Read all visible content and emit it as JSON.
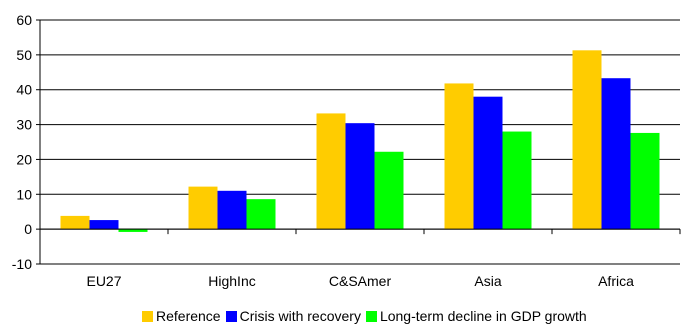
{
  "chart_data": {
    "type": "bar",
    "categories": [
      "EU27",
      "HighInc",
      "C&SAmer",
      "Asia",
      "Africa"
    ],
    "series": [
      {
        "name": "Reference",
        "color": "#FFCC00",
        "values": [
          3.8,
          12.2,
          33.2,
          41.8,
          51.3
        ]
      },
      {
        "name": "Crisis with recovery",
        "color": "#0000FF",
        "values": [
          2.6,
          11.0,
          30.4,
          38.0,
          43.3
        ]
      },
      {
        "name": "Long-term decline in GDP growth",
        "color": "#00FF00",
        "values": [
          -0.8,
          8.6,
          22.2,
          28.0,
          27.6
        ]
      }
    ],
    "ylim": [
      -10,
      60
    ],
    "yticks": [
      "-10",
      "0",
      "10",
      "20",
      "30",
      "40",
      "50",
      "60"
    ],
    "title": "",
    "xlabel": "",
    "ylabel": "",
    "legend_position": "bottom"
  }
}
